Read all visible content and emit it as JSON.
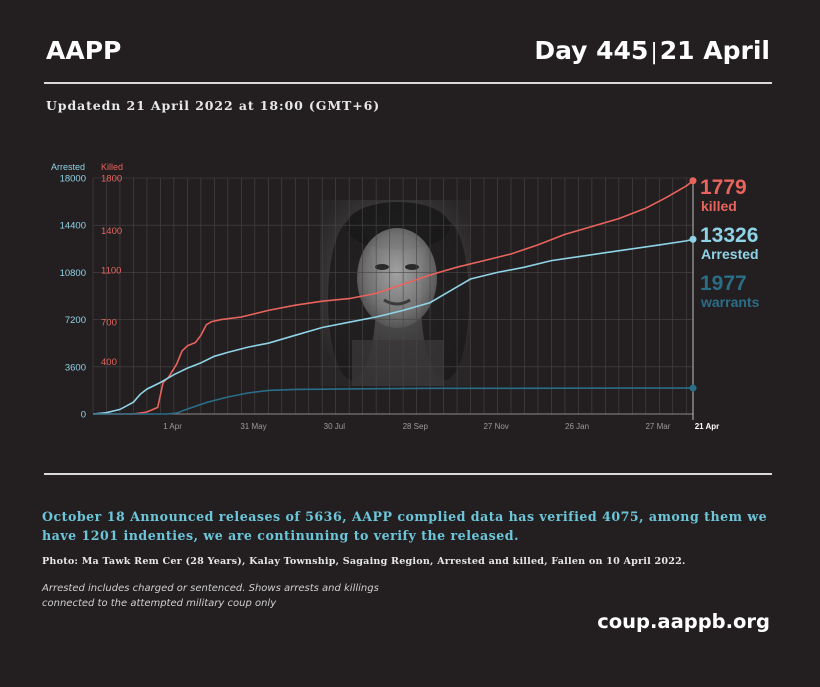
{
  "header": {
    "brand": "AAPP",
    "day_label": "Day 445",
    "day_sep": "|",
    "date_label": "21 April"
  },
  "updated": "Updatedn 21 April 2022 at 18:00 (GMT+6)",
  "colors": {
    "killed": "#e8645c",
    "arrested": "#8fd3e6",
    "warrants": "#2a6d87",
    "background": "#231f20"
  },
  "chart_data": {
    "type": "line",
    "left_axis": {
      "label": "Arrested",
      "ticks": [
        "18000",
        "14400",
        "10800",
        "7200",
        "3600",
        "0"
      ],
      "range": [
        0,
        18000
      ]
    },
    "right_axis": {
      "label": "Killed",
      "ticks": [
        "1800",
        "1400",
        "1100",
        "700",
        "400"
      ],
      "range": [
        0,
        1800
      ]
    },
    "x_ticks": [
      "1 Apr",
      "31 May",
      "30 Jul",
      "28 Sep",
      "27 Nov",
      "26 Jan",
      "27 Mar",
      "21 Apr"
    ],
    "x_tick_days": [
      59,
      119,
      179,
      239,
      299,
      359,
      419,
      445
    ],
    "x_range": [
      0,
      445
    ],
    "grid": true,
    "series": [
      {
        "name": "killed",
        "axis": "right",
        "big_value": "1779",
        "points": [
          [
            0,
            0
          ],
          [
            30,
            0
          ],
          [
            40,
            15
          ],
          [
            48,
            50
          ],
          [
            52,
            240
          ],
          [
            56,
            280
          ],
          [
            62,
            380
          ],
          [
            66,
            480
          ],
          [
            70,
            520
          ],
          [
            76,
            545
          ],
          [
            80,
            600
          ],
          [
            84,
            680
          ],
          [
            88,
            705
          ],
          [
            95,
            720
          ],
          [
            110,
            740
          ],
          [
            130,
            790
          ],
          [
            150,
            830
          ],
          [
            170,
            860
          ],
          [
            190,
            880
          ],
          [
            210,
            920
          ],
          [
            230,
            990
          ],
          [
            250,
            1060
          ],
          [
            270,
            1120
          ],
          [
            290,
            1170
          ],
          [
            310,
            1220
          ],
          [
            330,
            1290
          ],
          [
            350,
            1370
          ],
          [
            370,
            1430
          ],
          [
            390,
            1490
          ],
          [
            410,
            1570
          ],
          [
            425,
            1650
          ],
          [
            440,
            1740
          ],
          [
            445,
            1779
          ]
        ]
      },
      {
        "name": "Arrested",
        "axis": "left",
        "big_value": "13326",
        "points": [
          [
            0,
            0
          ],
          [
            10,
            100
          ],
          [
            20,
            350
          ],
          [
            30,
            900
          ],
          [
            35,
            1500
          ],
          [
            40,
            1900
          ],
          [
            50,
            2400
          ],
          [
            60,
            3000
          ],
          [
            70,
            3500
          ],
          [
            80,
            3900
          ],
          [
            90,
            4400
          ],
          [
            100,
            4700
          ],
          [
            115,
            5100
          ],
          [
            130,
            5400
          ],
          [
            150,
            6000
          ],
          [
            170,
            6600
          ],
          [
            190,
            7000
          ],
          [
            210,
            7400
          ],
          [
            230,
            7900
          ],
          [
            250,
            8500
          ],
          [
            265,
            9400
          ],
          [
            280,
            10300
          ],
          [
            300,
            10800
          ],
          [
            320,
            11200
          ],
          [
            340,
            11700
          ],
          [
            360,
            12000
          ],
          [
            380,
            12300
          ],
          [
            400,
            12600
          ],
          [
            420,
            12900
          ],
          [
            440,
            13200
          ],
          [
            445,
            13326
          ]
        ]
      },
      {
        "name": "warrants",
        "axis": "left",
        "big_value": "1977",
        "points": [
          [
            0,
            0
          ],
          [
            55,
            0
          ],
          [
            62,
            80
          ],
          [
            72,
            450
          ],
          [
            85,
            900
          ],
          [
            100,
            1300
          ],
          [
            115,
            1600
          ],
          [
            130,
            1800
          ],
          [
            150,
            1880
          ],
          [
            200,
            1920
          ],
          [
            250,
            1960
          ],
          [
            300,
            1960
          ],
          [
            350,
            1970
          ],
          [
            400,
            1975
          ],
          [
            445,
            1977
          ]
        ]
      }
    ]
  },
  "announcement": "October 18 Announced releases of 5636, AAPP complied data has verified 4075, among them we have 1201 indenties, we are continuning to verify the released.",
  "photo_caption": "Photo: Ma Tawk Rem Cer (28 Years), Kalay Township, Sagaing Region, Arrested and killed, Fallen on 10 April 2022.",
  "note": "Arrested includes charged or sentenced. Shows arrests and killings connected to the attempted military coup only",
  "website": "coup.aappb.org"
}
